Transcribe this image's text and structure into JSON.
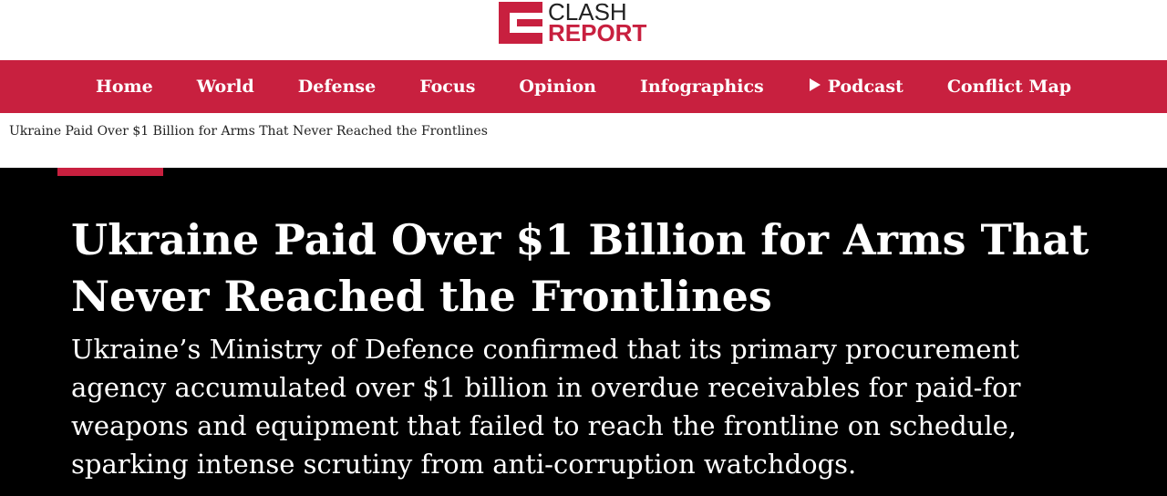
{
  "header": {
    "logo": {
      "line1": "CLASH",
      "line2": "REPORT"
    }
  },
  "nav": {
    "items": [
      "Home",
      "World",
      "Defense",
      "Focus",
      "Opinion",
      "Infographics",
      "Podcast",
      "Conflict Map"
    ]
  },
  "breadcrumb": "Ukraine Paid Over $1 Billion for Arms That Never Reached the Frontlines",
  "article": {
    "title": "Ukraine Paid Over $1 Billion for Arms That Never Reached the Frontlines",
    "summary": "Ukraine’s Ministry of Defence confirmed that its primary procurement agency accumulated over $1 billion in overdue receivables for paid-for weapons and equipment that failed to reach the frontline on schedule, sparking intense scrutiny from anti-corruption watchdogs."
  }
}
